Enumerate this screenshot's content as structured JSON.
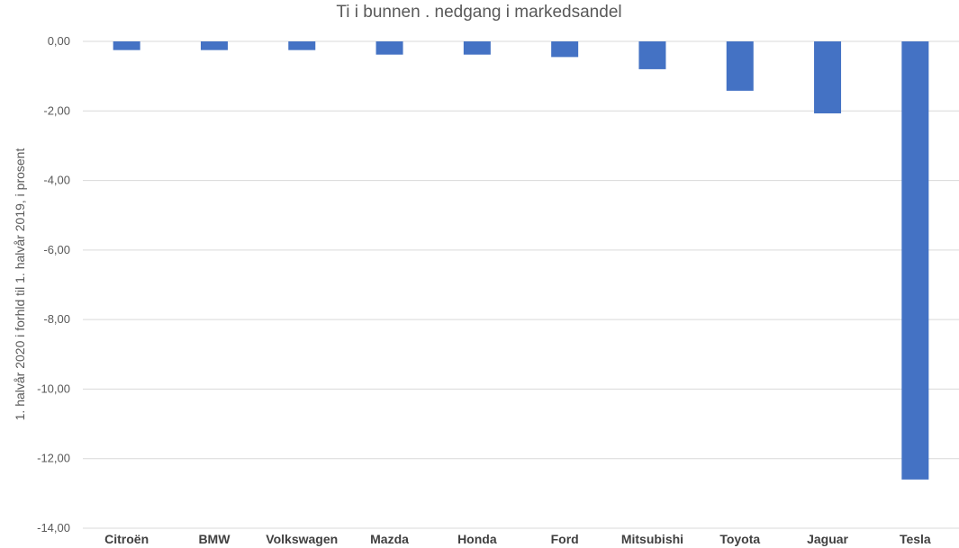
{
  "chart_data": {
    "type": "bar",
    "title": "Ti i bunnen . nedgang i markedsandel",
    "xlabel": "",
    "ylabel": "1. halvår 2020 i forhld til 1. halvår 2019, i prosent",
    "categories": [
      "Citroën",
      "BMW",
      "Volkswagen",
      "Mazda",
      "Honda",
      "Ford",
      "Mitsubishi",
      "Toyota",
      "Jaguar",
      "Tesla"
    ],
    "values": [
      -0.25,
      -0.25,
      -0.25,
      -0.38,
      -0.38,
      -0.45,
      -0.8,
      -1.42,
      -2.07,
      -12.6
    ],
    "ylim": [
      -14,
      0
    ],
    "yticks": [
      0,
      -2,
      -4,
      -6,
      -8,
      -10,
      -12,
      -14
    ],
    "ytick_labels": [
      "0,00",
      "-2,00",
      "-4,00",
      "-6,00",
      "-8,00",
      "-10,00",
      "-12,00",
      "-14,00"
    ],
    "grid": true,
    "legend": "none",
    "bar_color": "#4472c4"
  }
}
